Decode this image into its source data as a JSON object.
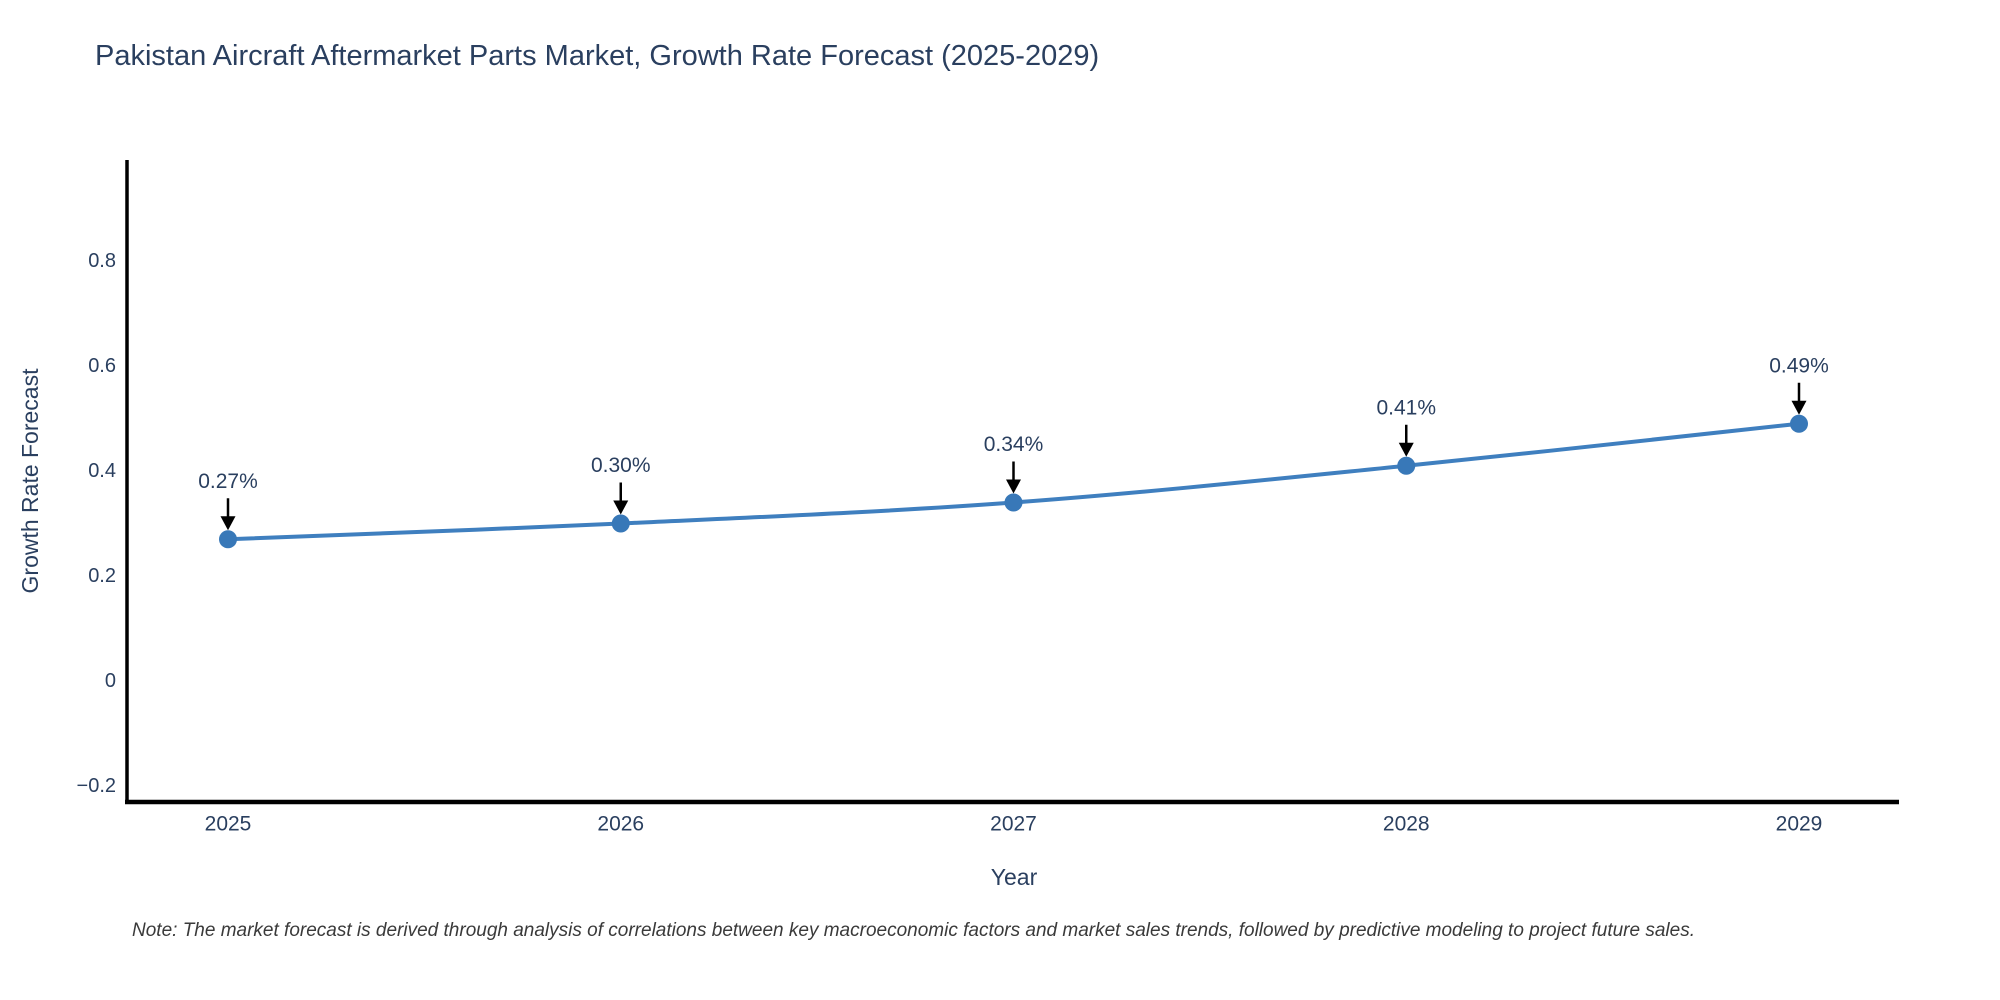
{
  "title": "Pakistan Aircraft Aftermarket Parts Market, Growth Rate Forecast (2025-2029)",
  "note": "Note: The market forecast is derived through analysis of correlations between key macroeconomic factors and market sales trends, followed by predictive modeling to project future sales.",
  "chart_data": {
    "type": "line",
    "title": "Pakistan Aircraft Aftermarket Parts Market, Growth Rate Forecast (2025-2029)",
    "xlabel": "Year",
    "ylabel": "Growth Rate Forecast",
    "x": [
      2025,
      2026,
      2027,
      2028,
      2029
    ],
    "y": [
      0.27,
      0.3,
      0.34,
      0.41,
      0.49
    ],
    "point_labels": [
      "0.27%",
      "0.30%",
      "0.34%",
      "0.41%",
      "0.49%"
    ],
    "xtick_labels": [
      "2025",
      "2026",
      "2027",
      "2028",
      "2029"
    ],
    "ytick_values": [
      -0.2,
      0,
      0.2,
      0.4,
      0.6,
      0.8
    ],
    "ytick_labels": [
      "−0.2",
      "0",
      "0.2",
      "0.4",
      "0.6",
      "0.8"
    ],
    "ylim": [
      -0.23,
      0.99
    ],
    "grid": false,
    "legend": "none",
    "annotations_note": "each point labeled with percent value and black arrow pointing down to marker",
    "colors": {
      "line": "#3f7fbf",
      "marker": "#3878b8",
      "axis": "#000000",
      "text": "#2a3f5f",
      "arrow": "#000000",
      "note_text": "#3a3a3a"
    }
  }
}
